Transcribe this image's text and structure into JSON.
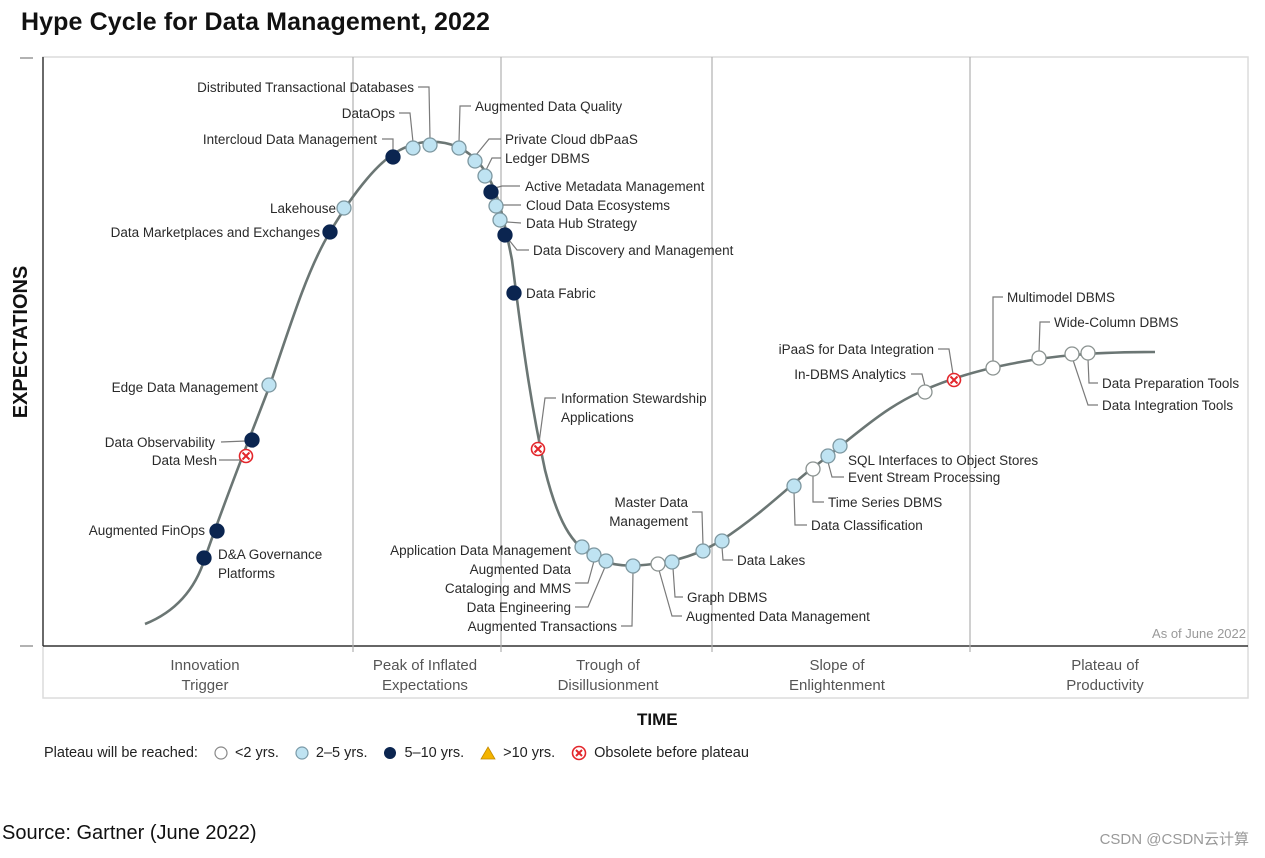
{
  "chart_data": {
    "type": "scatter",
    "subtype": "hype-cycle",
    "title": "Hype Cycle for Data Management, 2022",
    "xlabel": "TIME",
    "ylabel": "EXPECTATIONS",
    "as_of": "As of June 2022",
    "phases": [
      "Innovation Trigger",
      "Peak of Inflated Expectations",
      "Trough of Disillusionment",
      "Slope of Enlightenment",
      "Plateau of Productivity"
    ],
    "phase_lines": [
      "Innovation",
      "Trigger",
      "Peak of Inflated",
      "Expectations",
      "Trough of",
      "Disillusionment",
      "Slope of",
      "Enlightenment",
      "Plateau of",
      "Productivity"
    ],
    "legend": {
      "title": "Plateau will be reached:",
      "items": [
        {
          "key": "lt2",
          "label": "<2 yrs.",
          "color": "#ffffff"
        },
        {
          "key": "2to5",
          "label": "2–5 yrs.",
          "color": "#bfe3f2"
        },
        {
          "key": "5to10",
          "label": "5–10 yrs.",
          "color": "#0b2550"
        },
        {
          "key": "gt10",
          "label": ">10 yrs.",
          "color": "#f4b400"
        },
        {
          "key": "obsolete",
          "label": "Obsolete before plateau",
          "color": "#e3262b"
        }
      ]
    },
    "points": [
      {
        "name": "D&A Governance Platforms",
        "phase": "Innovation Trigger",
        "plateau": "5to10"
      },
      {
        "name": "Augmented FinOps",
        "phase": "Innovation Trigger",
        "plateau": "5to10"
      },
      {
        "name": "Data Mesh",
        "phase": "Innovation Trigger",
        "plateau": "obsolete"
      },
      {
        "name": "Data Observability",
        "phase": "Innovation Trigger",
        "plateau": "5to10"
      },
      {
        "name": "Edge Data Management",
        "phase": "Innovation Trigger",
        "plateau": "2to5"
      },
      {
        "name": "Data Marketplaces and Exchanges",
        "phase": "Innovation Trigger",
        "plateau": "5to10"
      },
      {
        "name": "Lakehouse",
        "phase": "Innovation Trigger",
        "plateau": "2to5"
      },
      {
        "name": "Intercloud Data Management",
        "phase": "Peak of Inflated Expectations",
        "plateau": "5to10"
      },
      {
        "name": "DataOps",
        "phase": "Peak of Inflated Expectations",
        "plateau": "2to5"
      },
      {
        "name": "Distributed Transactional Databases",
        "phase": "Peak of Inflated Expectations",
        "plateau": "2to5"
      },
      {
        "name": "Augmented Data Quality",
        "phase": "Peak of Inflated Expectations",
        "plateau": "2to5"
      },
      {
        "name": "Private Cloud dbPaaS",
        "phase": "Peak of Inflated Expectations",
        "plateau": "2to5"
      },
      {
        "name": "Ledger DBMS",
        "phase": "Peak of Inflated Expectations",
        "plateau": "2to5"
      },
      {
        "name": "Active Metadata Management",
        "phase": "Peak of Inflated Expectations",
        "plateau": "5to10"
      },
      {
        "name": "Cloud Data Ecosystems",
        "phase": "Peak of Inflated Expectations",
        "plateau": "2to5"
      },
      {
        "name": "Data Hub Strategy",
        "phase": "Peak of Inflated Expectations",
        "plateau": "2to5"
      },
      {
        "name": "Data Discovery and Management",
        "phase": "Trough of Disillusionment",
        "plateau": "5to10"
      },
      {
        "name": "Data Fabric",
        "phase": "Trough of Disillusionment",
        "plateau": "5to10"
      },
      {
        "name": "Information Stewardship Applications",
        "phase": "Trough of Disillusionment",
        "plateau": "obsolete"
      },
      {
        "name": "Application Data Management",
        "phase": "Trough of Disillusionment",
        "plateau": "2to5"
      },
      {
        "name": "Augmented Data Cataloging and MMS",
        "phase": "Trough of Disillusionment",
        "plateau": "2to5"
      },
      {
        "name": "Data Engineering",
        "phase": "Trough of Disillusionment",
        "plateau": "2to5"
      },
      {
        "name": "Augmented Transactions",
        "phase": "Trough of Disillusionment",
        "plateau": "2to5"
      },
      {
        "name": "Augmented Data Management",
        "phase": "Trough of Disillusionment",
        "plateau": "lt2"
      },
      {
        "name": "Graph DBMS",
        "phase": "Trough of Disillusionment",
        "plateau": "2to5"
      },
      {
        "name": "Master Data Management",
        "phase": "Trough of Disillusionment",
        "plateau": "2to5"
      },
      {
        "name": "Data Lakes",
        "phase": "Slope of Enlightenment",
        "plateau": "2to5"
      },
      {
        "name": "Data Classification",
        "phase": "Slope of Enlightenment",
        "plateau": "2to5"
      },
      {
        "name": "Time Series DBMS",
        "phase": "Slope of Enlightenment",
        "plateau": "lt2"
      },
      {
        "name": "Event Stream Processing",
        "phase": "Slope of Enlightenment",
        "plateau": "2to5"
      },
      {
        "name": "SQL Interfaces to Object Stores",
        "phase": "Slope of Enlightenment",
        "plateau": "2to5"
      },
      {
        "name": "In-DBMS Analytics",
        "phase": "Slope of Enlightenment",
        "plateau": "lt2"
      },
      {
        "name": "iPaaS for Data Integration",
        "phase": "Slope of Enlightenment",
        "plateau": "obsolete"
      },
      {
        "name": "Multimodel DBMS",
        "phase": "Plateau of Productivity",
        "plateau": "lt2"
      },
      {
        "name": "Wide-Column DBMS",
        "phase": "Plateau of Productivity",
        "plateau": "lt2"
      },
      {
        "name": "Data Integration Tools",
        "phase": "Plateau of Productivity",
        "plateau": "lt2"
      },
      {
        "name": "Data Preparation Tools",
        "phase": "Plateau of Productivity",
        "plateau": "lt2"
      }
    ],
    "label_lines": {
      "D&A Governance Platforms": [
        "D&A Governance",
        "Platforms"
      ],
      "Information Stewardship Applications": [
        "Information Stewardship",
        "Applications"
      ],
      "Augmented Data Cataloging and MMS": [
        "Augmented Data",
        "Cataloging and MMS"
      ],
      "Master Data Management": [
        "Master Data",
        "Management"
      ]
    }
  },
  "footer": {
    "source": "Source: Gartner (June 2022)",
    "watermark": "CSDN @CSDN云计算"
  }
}
